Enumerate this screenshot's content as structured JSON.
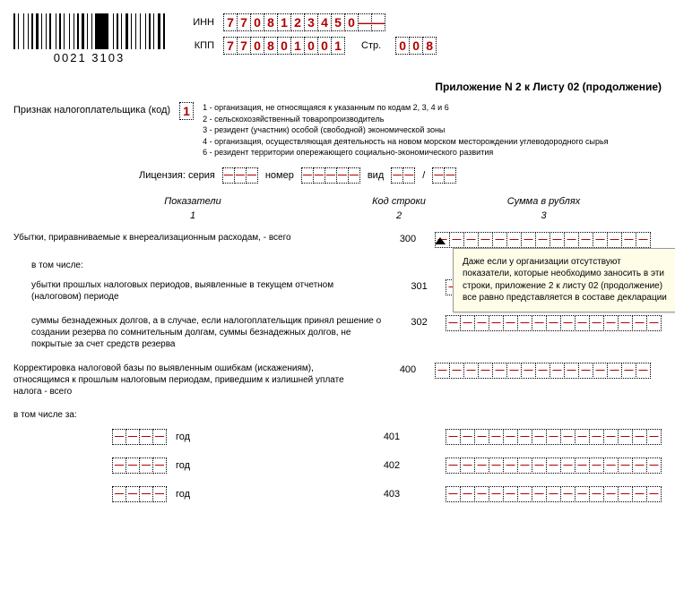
{
  "barcode_text": "0021 3103",
  "header": {
    "inn_label": "ИНН",
    "inn": [
      "7",
      "7",
      "0",
      "8",
      "1",
      "2",
      "3",
      "4",
      "5",
      "0",
      "—",
      "—"
    ],
    "kpp_label": "КПП",
    "kpp": [
      "7",
      "7",
      "0",
      "8",
      "0",
      "1",
      "0",
      "0",
      "1"
    ],
    "str_label": "Стр.",
    "str": [
      "0",
      "0",
      "8"
    ]
  },
  "appendix_title": "Приложение N 2 к Листу 02 (продолжение)",
  "taxpayer": {
    "label": "Признак налогоплательщика (код)",
    "value": "1",
    "legend": [
      "1 - организация, не относящаяся к указанным по кодам 2, 3, 4 и 6",
      "2 - сельскохозяйственный товаропроизводитель",
      "3 - резидент (участник) особой (свободной) экономической зоны",
      "4 - организация, осуществляющая деятельность на новом морском месторождении углеводородного сырья",
      "6 - резидент территории опережающего социально-экономического развития"
    ]
  },
  "license": {
    "label": "Лицензия: серия",
    "number_label": "номер",
    "type_label": "вид",
    "slash": "/"
  },
  "columns": {
    "c1": "Показатели",
    "c1n": "1",
    "c2": "Код строки",
    "c2n": "2",
    "c3": "Сумма в рублях",
    "c3n": "3"
  },
  "rows": [
    {
      "desc": "Убытки, приравниваемые к внереализационным расходам, - всего",
      "code": "300"
    },
    {
      "desc": "в том числе:",
      "code": "",
      "section": true
    },
    {
      "desc": "убытки прошлых налоговых периодов, выявленные в текущем отчетном (налоговом) периоде",
      "code": "301",
      "indent": true
    },
    {
      "desc": "суммы безнадежных долгов, а в случае, если налогоплательщик принял решение о создании резерва по сомнительным долгам, суммы безнадежных долгов, не покрытые за счет средств резерва",
      "code": "302",
      "indent": true
    },
    {
      "desc": "Корректировка налоговой базы по выявленным ошибкам (искажениям), относящимся к прошлым налоговым периодам, приведшим к излишней уплате налога - всего",
      "code": "400"
    },
    {
      "desc": "в том числе за:",
      "code": "",
      "section": true
    }
  ],
  "year_rows": [
    {
      "code": "401"
    },
    {
      "code": "402"
    },
    {
      "code": "403"
    }
  ],
  "year_label": "год",
  "callout": "Даже если у организации отсутствуют показатели, которые необходимо заносить в эти строки, приложение 2 к листу 02 (продолжение) все равно представляется в составе декларации",
  "colors": {
    "cell_value": "#b00000",
    "callout_bg": "#fffde8"
  },
  "amount_cells": 15,
  "year_cells": 4,
  "license_series_cells": 3,
  "license_number_cells": 5,
  "license_type_cells": 2
}
